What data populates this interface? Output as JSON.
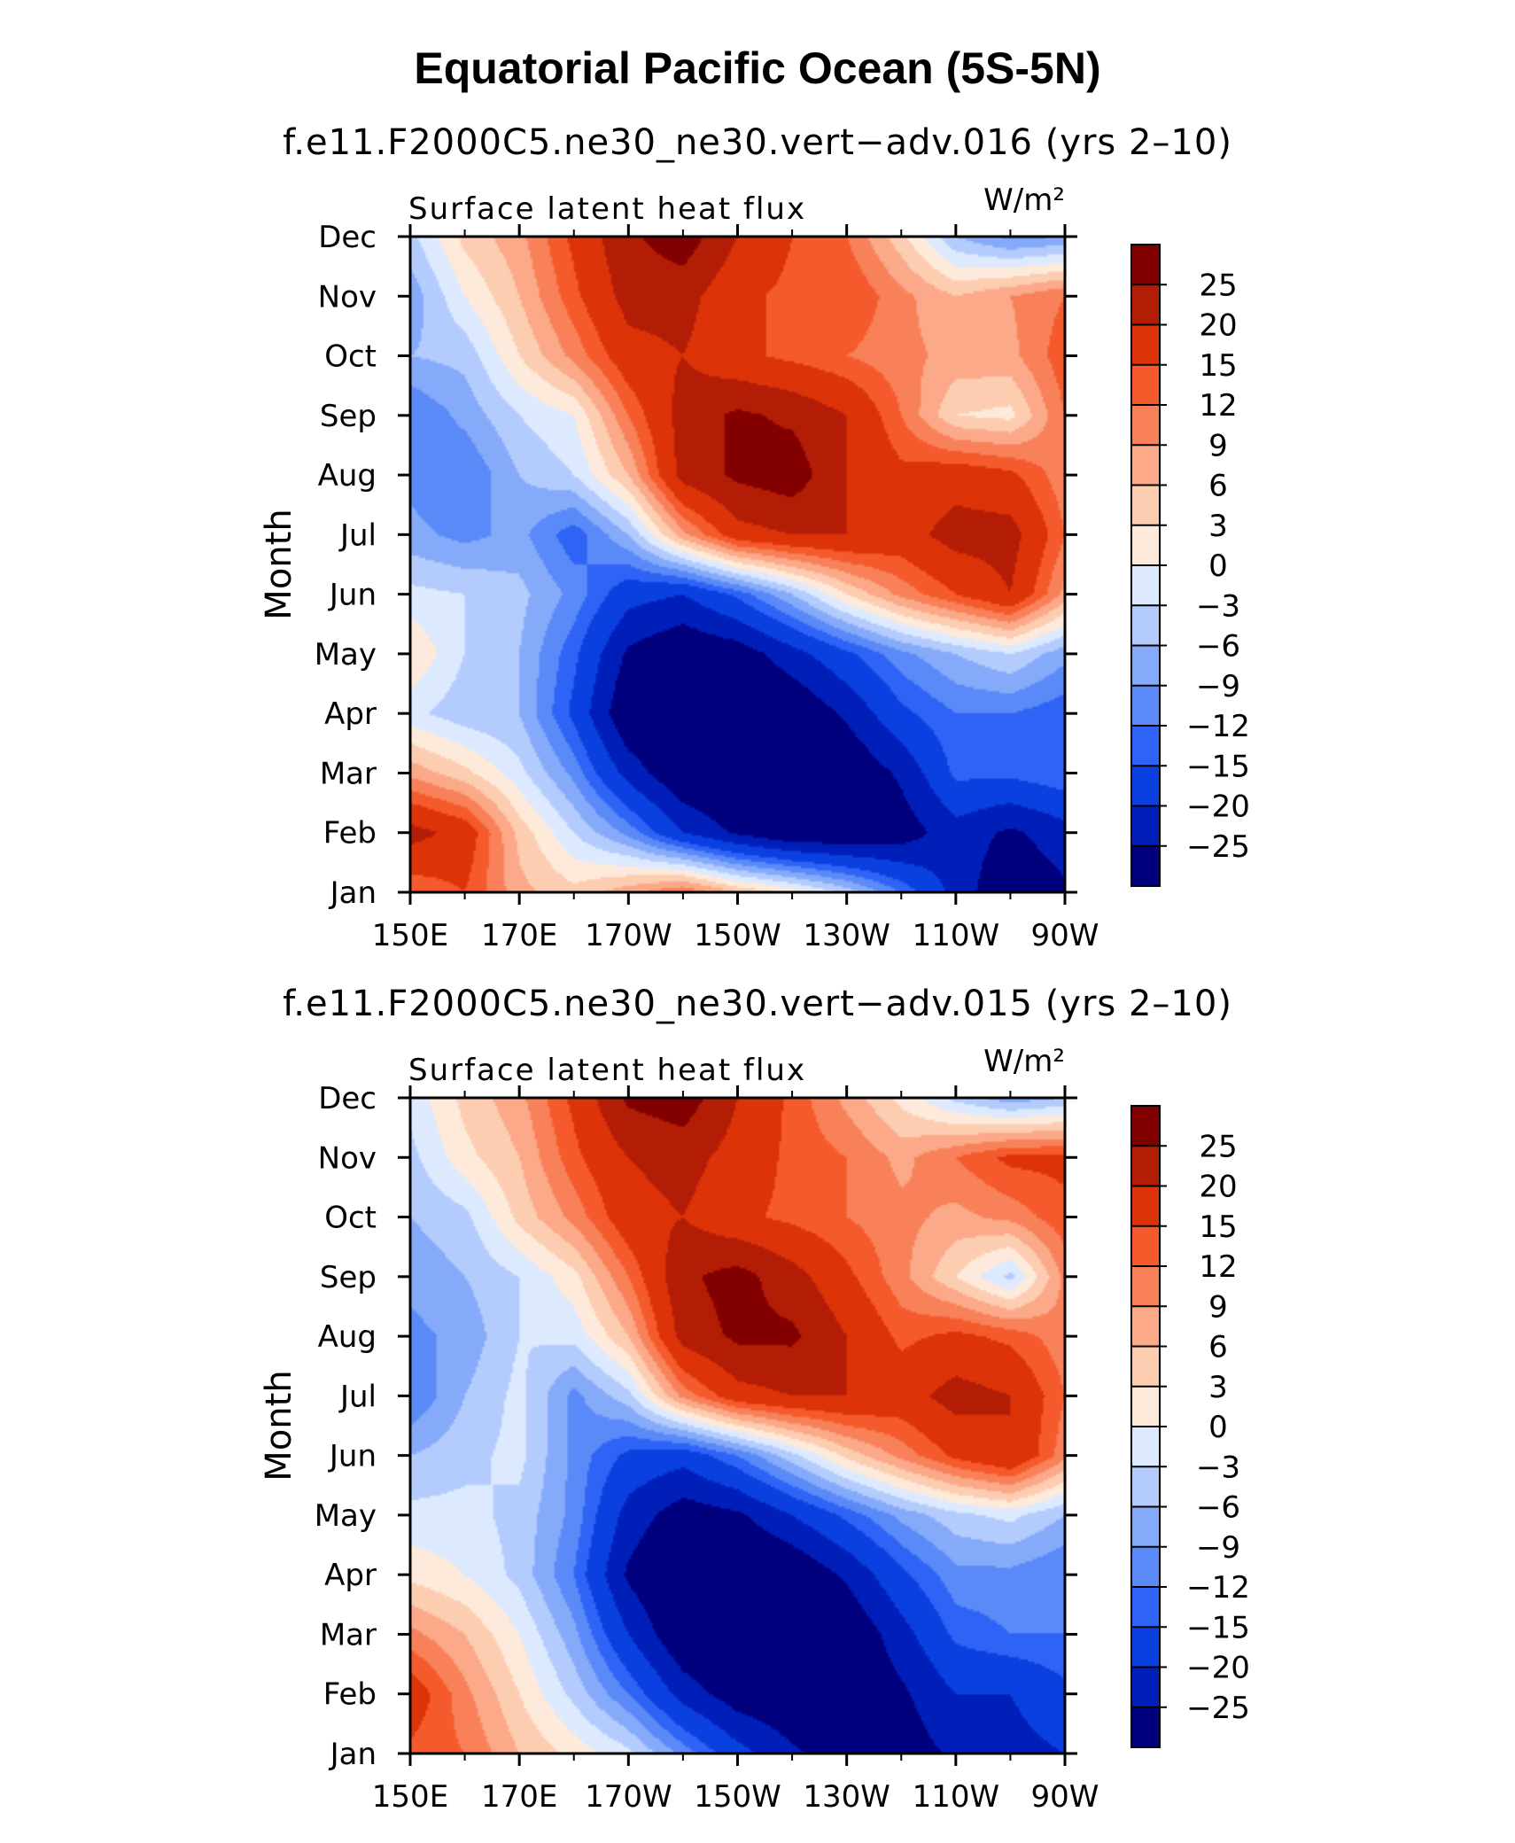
{
  "title": "Equatorial Pacific Ocean (5S-5N)",
  "chart_data": [
    {
      "type": "heatmap",
      "title": "f.e11.F2000C5.ne30_ne30.vert−adv.016 (yrs 2–10)",
      "left_string": "Surface latent heat flux",
      "right_string": "W/m²",
      "ylabel": "Month",
      "x_tick_labels": [
        "150E",
        "170E",
        "170W",
        "150W",
        "130W",
        "110W",
        "90W"
      ],
      "x_values": [
        150,
        160,
        170,
        180,
        190,
        200,
        210,
        220,
        230,
        240,
        250,
        260,
        270
      ],
      "y_tick_labels": [
        "Jan",
        "Feb",
        "Mar",
        "Apr",
        "May",
        "Jun",
        "Jul",
        "Aug",
        "Sep",
        "Oct",
        "Nov",
        "Dec"
      ],
      "colorbar_labels": [
        "25",
        "20",
        "15",
        "12",
        "9",
        "6",
        "3",
        "0",
        "−3",
        "−6",
        "−9",
        "−12",
        "−15",
        "−20",
        "−25"
      ],
      "levels": [
        -25,
        -20,
        -15,
        -12,
        -9,
        -6,
        -3,
        0,
        3,
        6,
        9,
        12,
        15,
        20,
        25
      ],
      "colors": [
        "#00007f",
        "#001fb8",
        "#0a3fe0",
        "#2e63f5",
        "#5a8af8",
        "#86aafa",
        "#b3cbfd",
        "#dce9fe",
        "#feeadb",
        "#fdcdb2",
        "#fba988",
        "#f8815a",
        "#f55a2c",
        "#dd3309",
        "#b31d06",
        "#820000"
      ],
      "z": [
        [
          12,
          15,
          7,
          4,
          8,
          12,
          6,
          2,
          -4,
          -12,
          -22,
          -30,
          -26
        ],
        [
          22,
          18,
          5,
          -3,
          -10,
          -20,
          -26,
          -30,
          -30,
          -28,
          -22,
          -26,
          -22
        ],
        [
          8,
          4,
          -2,
          -10,
          -22,
          -30,
          -32,
          -32,
          -30,
          -24,
          -14,
          -14,
          -12
        ],
        [
          -2,
          -5,
          -6,
          -16,
          -30,
          -32,
          -32,
          -30,
          -24,
          -16,
          -12,
          -12,
          -14
        ],
        [
          3,
          -3,
          -6,
          -14,
          -26,
          -30,
          -28,
          -22,
          -16,
          -10,
          -6,
          -3,
          -8
        ],
        [
          -2,
          -3,
          -5,
          -10,
          -18,
          -20,
          -14,
          -6,
          3,
          10,
          15,
          20,
          8
        ],
        [
          -8,
          -10,
          -8,
          -14,
          -6,
          8,
          18,
          20,
          20,
          18,
          22,
          22,
          12
        ],
        [
          -10,
          -12,
          -6,
          -3,
          6,
          22,
          26,
          28,
          20,
          16,
          18,
          16,
          10
        ],
        [
          -12,
          -8,
          -3,
          0,
          12,
          22,
          26,
          24,
          20,
          12,
          3,
          2,
          12
        ],
        [
          -6,
          -5,
          3,
          10,
          18,
          20,
          16,
          14,
          12,
          10,
          8,
          8,
          14
        ],
        [
          -8,
          0,
          6,
          14,
          22,
          22,
          16,
          14,
          15,
          10,
          6,
          9,
          12
        ],
        [
          -4,
          4,
          8,
          16,
          24,
          28,
          20,
          15,
          12,
          4,
          -6,
          -10,
          -9
        ]
      ]
    },
    {
      "type": "heatmap",
      "title": "f.e11.F2000C5.ne30_ne30.vert−adv.015 (yrs 2–10)",
      "left_string": "Surface latent heat flux",
      "right_string": "W/m²",
      "ylabel": "Month",
      "x_tick_labels": [
        "150E",
        "170E",
        "170W",
        "150W",
        "130W",
        "110W",
        "90W"
      ],
      "x_values": [
        150,
        160,
        170,
        180,
        190,
        200,
        210,
        220,
        230,
        240,
        250,
        260,
        270
      ],
      "y_tick_labels": [
        "Jan",
        "Feb",
        "Mar",
        "Apr",
        "May",
        "Jun",
        "Jul",
        "Aug",
        "Sep",
        "Oct",
        "Nov",
        "Dec"
      ],
      "colorbar_labels": [
        "25",
        "20",
        "15",
        "12",
        "9",
        "6",
        "3",
        "0",
        "−3",
        "−6",
        "−9",
        "−12",
        "−15",
        "−20",
        "−25"
      ],
      "levels": [
        -25,
        -20,
        -15,
        -12,
        -9,
        -6,
        -3,
        0,
        3,
        6,
        9,
        12,
        15,
        20,
        25
      ],
      "colors": [
        "#00007f",
        "#001fb8",
        "#0a3fe0",
        "#2e63f5",
        "#5a8af8",
        "#86aafa",
        "#b3cbfd",
        "#dce9fe",
        "#feeadb",
        "#fdcdb2",
        "#fba988",
        "#f8815a",
        "#f55a2c",
        "#dd3309",
        "#b31d06",
        "#820000"
      ],
      "z": [
        [
          14,
          12,
          6,
          2,
          -2,
          -10,
          -18,
          -24,
          -28,
          -28,
          -24,
          -22,
          -20
        ],
        [
          18,
          10,
          3,
          -4,
          -12,
          -22,
          -28,
          -30,
          -30,
          -26,
          -20,
          -20,
          -16
        ],
        [
          10,
          6,
          0,
          -8,
          -20,
          -30,
          -32,
          -32,
          -30,
          -22,
          -14,
          -12,
          -12
        ],
        [
          2,
          0,
          -4,
          -12,
          -26,
          -32,
          -32,
          -30,
          -24,
          -16,
          -10,
          -10,
          -12
        ],
        [
          -2,
          -2,
          -4,
          -10,
          -22,
          -28,
          -26,
          -20,
          -14,
          -8,
          -4,
          -2,
          -6
        ],
        [
          -6,
          -4,
          -2,
          -10,
          -16,
          -18,
          -12,
          -4,
          4,
          10,
          16,
          20,
          10
        ],
        [
          -12,
          -6,
          -2,
          -10,
          -4,
          10,
          18,
          20,
          20,
          18,
          22,
          20,
          12
        ],
        [
          -10,
          -8,
          -3,
          -2,
          6,
          22,
          26,
          26,
          20,
          14,
          16,
          14,
          10
        ],
        [
          -8,
          -6,
          -3,
          2,
          12,
          24,
          27,
          22,
          16,
          10,
          3,
          -4,
          10
        ],
        [
          -6,
          -4,
          4,
          10,
          18,
          20,
          16,
          14,
          12,
          10,
          8,
          10,
          14
        ],
        [
          -4,
          2,
          6,
          14,
          20,
          22,
          18,
          14,
          12,
          8,
          12,
          16,
          16
        ],
        [
          -2,
          4,
          8,
          16,
          26,
          28,
          20,
          14,
          8,
          2,
          -4,
          -8,
          -6
        ]
      ]
    }
  ]
}
